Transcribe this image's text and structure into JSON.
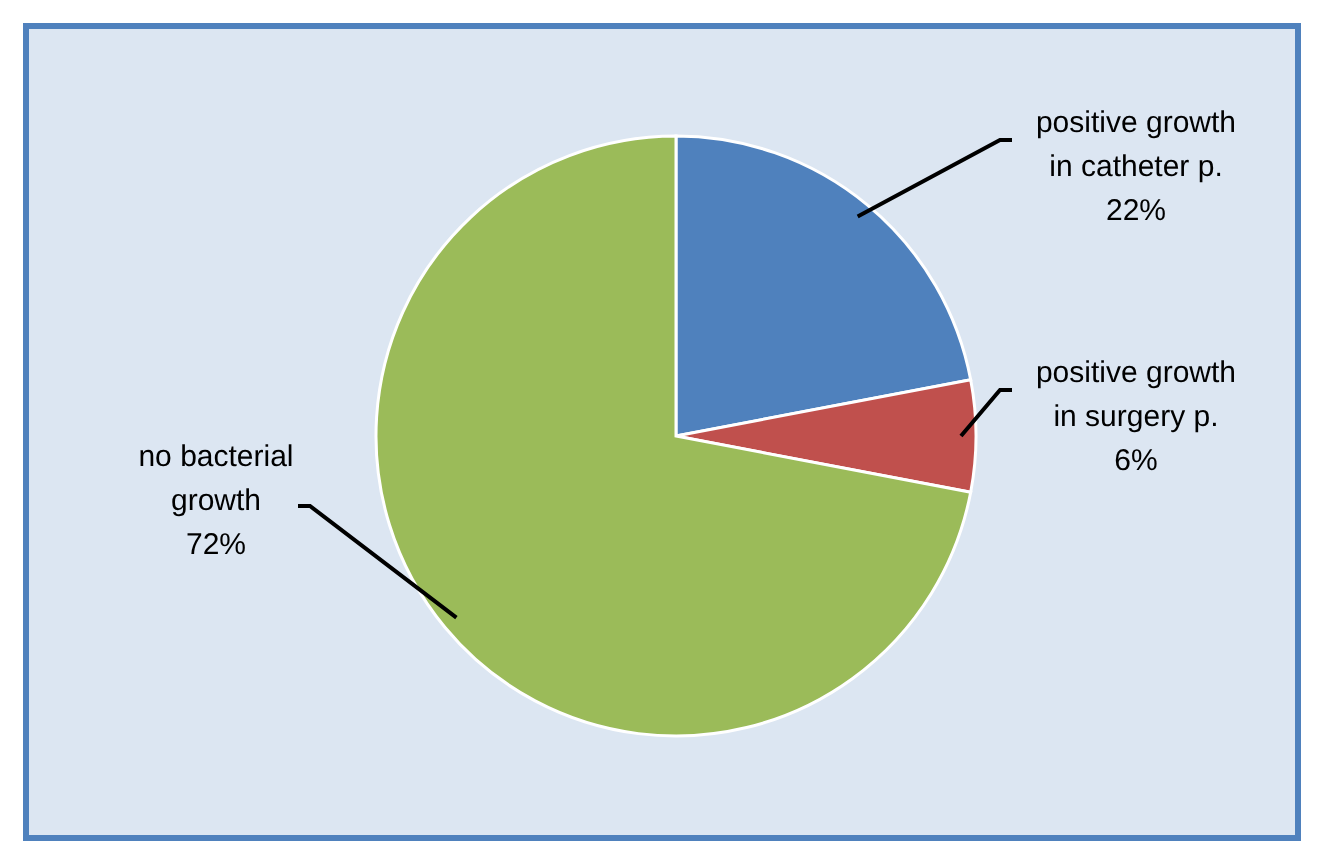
{
  "chart_data": {
    "type": "pie",
    "categories": [
      "positive growth in catheter p.",
      "positive growth in surgery p.",
      "no bacterial growth"
    ],
    "values": [
      22,
      6,
      72
    ],
    "colors": [
      "#4f81bd",
      "#c0504d",
      "#9bbb59"
    ],
    "value_labels": [
      "22%",
      "6%",
      "72%"
    ],
    "legend": false
  }
}
